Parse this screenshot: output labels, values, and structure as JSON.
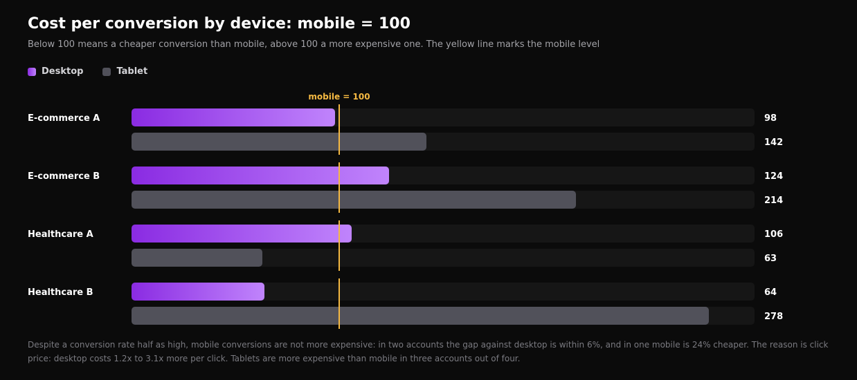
{
  "chart_data": {
    "type": "bar",
    "orientation": "horizontal",
    "title": "Cost per conversion by device: mobile = 100",
    "subtitle": "Below 100 means a cheaper conversion than mobile, above 100 a more expensive one. The yellow line marks the mobile level",
    "categories": [
      "E-commerce A",
      "E-commerce B",
      "Healthcare A",
      "Healthcare B"
    ],
    "series": [
      {
        "name": "Desktop",
        "values": [
          98,
          124,
          106,
          64
        ],
        "color": "#a855f7"
      },
      {
        "name": "Tablet",
        "values": [
          142,
          214,
          63,
          278
        ],
        "color": "#51515a"
      }
    ],
    "xlim": [
      0,
      300
    ],
    "reference_line": {
      "value": 100,
      "label": "mobile = 100",
      "color": "#f5b942"
    },
    "legend_position": "top-left",
    "grid": false,
    "footnote": "Despite a conversion rate half as high, mobile conversions are not more expensive: in two accounts the gap against desktop is within 6%, and in one mobile is 24% cheaper. The reason is click price: desktop costs 1.2x to 3.1x more per click. Tablets are more expensive than mobile in three accounts out of four."
  }
}
